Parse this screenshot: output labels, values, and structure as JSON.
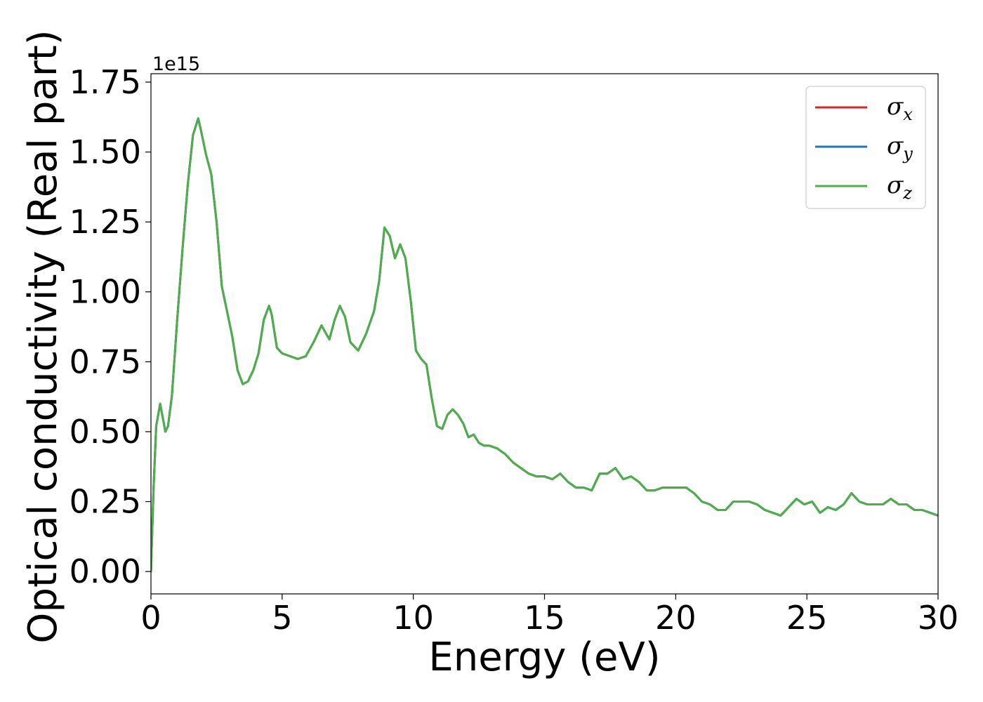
{
  "chart_data": {
    "type": "line",
    "xlabel": "Energy (eV)",
    "ylabel": "Optical conductivity (Real part)",
    "y_offset_label": "1e15",
    "y_scale_factor": 1000000000000000.0,
    "xlim": [
      0,
      30
    ],
    "ylim": [
      -0.08,
      1.78
    ],
    "x_ticks": [
      0,
      5,
      10,
      15,
      20,
      25,
      30
    ],
    "x_tick_labels": [
      "0",
      "5",
      "10",
      "15",
      "20",
      "25",
      "30"
    ],
    "y_ticks": [
      0.0,
      0.25,
      0.5,
      0.75,
      1.0,
      1.25,
      1.5,
      1.75
    ],
    "y_tick_labels": [
      "0.00",
      "0.25",
      "0.50",
      "0.75",
      "1.00",
      "1.25",
      "1.50",
      "1.75"
    ],
    "grid": false,
    "legend_position": "top-right",
    "x": [
      0,
      0.1,
      0.2,
      0.35,
      0.45,
      0.55,
      0.65,
      0.8,
      1.0,
      1.2,
      1.4,
      1.6,
      1.8,
      1.9,
      2.1,
      2.3,
      2.5,
      2.7,
      2.9,
      3.1,
      3.3,
      3.5,
      3.7,
      3.9,
      4.1,
      4.3,
      4.5,
      4.6,
      4.8,
      5.0,
      5.3,
      5.6,
      5.9,
      6.2,
      6.5,
      6.8,
      7.0,
      7.2,
      7.4,
      7.6,
      7.9,
      8.2,
      8.5,
      8.7,
      8.9,
      9.1,
      9.3,
      9.5,
      9.7,
      9.9,
      10.1,
      10.3,
      10.5,
      10.7,
      10.9,
      11.1,
      11.3,
      11.5,
      11.7,
      11.9,
      12.1,
      12.3,
      12.5,
      12.7,
      12.9,
      13.2,
      13.5,
      13.8,
      14.1,
      14.4,
      14.7,
      15.0,
      15.3,
      15.6,
      15.9,
      16.2,
      16.5,
      16.8,
      17.1,
      17.4,
      17.7,
      18.0,
      18.3,
      18.6,
      18.9,
      19.2,
      19.5,
      19.8,
      20.1,
      20.4,
      20.7,
      21.0,
      21.3,
      21.6,
      21.9,
      22.2,
      22.5,
      22.8,
      23.1,
      23.4,
      23.7,
      24.0,
      24.3,
      24.6,
      24.9,
      25.2,
      25.5,
      25.8,
      26.1,
      26.4,
      26.7,
      27.0,
      27.3,
      27.6,
      27.9,
      28.2,
      28.5,
      28.8,
      29.1,
      29.4,
      29.7,
      30.0
    ],
    "series": [
      {
        "name": "σx",
        "color": "#d62728",
        "values": [
          0.0,
          0.3,
          0.52,
          0.6,
          0.55,
          0.5,
          0.52,
          0.63,
          0.9,
          1.15,
          1.38,
          1.56,
          1.62,
          1.58,
          1.49,
          1.42,
          1.25,
          1.02,
          0.93,
          0.84,
          0.72,
          0.67,
          0.68,
          0.72,
          0.78,
          0.9,
          0.95,
          0.92,
          0.8,
          0.78,
          0.77,
          0.76,
          0.77,
          0.82,
          0.88,
          0.83,
          0.9,
          0.95,
          0.91,
          0.82,
          0.79,
          0.85,
          0.93,
          1.04,
          1.23,
          1.2,
          1.12,
          1.17,
          1.12,
          0.97,
          0.79,
          0.76,
          0.74,
          0.62,
          0.52,
          0.51,
          0.56,
          0.58,
          0.56,
          0.53,
          0.48,
          0.49,
          0.46,
          0.45,
          0.45,
          0.44,
          0.42,
          0.39,
          0.37,
          0.35,
          0.34,
          0.34,
          0.33,
          0.35,
          0.32,
          0.3,
          0.3,
          0.29,
          0.35,
          0.35,
          0.37,
          0.33,
          0.34,
          0.32,
          0.29,
          0.29,
          0.3,
          0.3,
          0.3,
          0.3,
          0.28,
          0.25,
          0.24,
          0.22,
          0.22,
          0.25,
          0.25,
          0.25,
          0.24,
          0.22,
          0.21,
          0.2,
          0.23,
          0.26,
          0.24,
          0.25,
          0.21,
          0.23,
          0.22,
          0.24,
          0.28,
          0.25,
          0.24,
          0.24,
          0.24,
          0.26,
          0.24,
          0.24,
          0.22,
          0.22,
          0.21,
          0.2
        ]
      },
      {
        "name": "σy",
        "color": "#1f77b4",
        "values": [
          0.0,
          0.3,
          0.52,
          0.6,
          0.55,
          0.5,
          0.52,
          0.63,
          0.9,
          1.15,
          1.38,
          1.56,
          1.62,
          1.58,
          1.49,
          1.42,
          1.25,
          1.02,
          0.93,
          0.84,
          0.72,
          0.67,
          0.68,
          0.72,
          0.78,
          0.9,
          0.95,
          0.92,
          0.8,
          0.78,
          0.77,
          0.76,
          0.77,
          0.82,
          0.88,
          0.83,
          0.9,
          0.95,
          0.91,
          0.82,
          0.79,
          0.85,
          0.93,
          1.04,
          1.23,
          1.2,
          1.12,
          1.17,
          1.12,
          0.97,
          0.79,
          0.76,
          0.74,
          0.62,
          0.52,
          0.51,
          0.56,
          0.58,
          0.56,
          0.53,
          0.48,
          0.49,
          0.46,
          0.45,
          0.45,
          0.44,
          0.42,
          0.39,
          0.37,
          0.35,
          0.34,
          0.34,
          0.33,
          0.35,
          0.32,
          0.3,
          0.3,
          0.29,
          0.35,
          0.35,
          0.37,
          0.33,
          0.34,
          0.32,
          0.29,
          0.29,
          0.3,
          0.3,
          0.3,
          0.3,
          0.28,
          0.25,
          0.24,
          0.22,
          0.22,
          0.25,
          0.25,
          0.25,
          0.24,
          0.22,
          0.21,
          0.2,
          0.23,
          0.26,
          0.24,
          0.25,
          0.21,
          0.23,
          0.22,
          0.24,
          0.28,
          0.25,
          0.24,
          0.24,
          0.24,
          0.26,
          0.24,
          0.24,
          0.22,
          0.22,
          0.21,
          0.2
        ]
      },
      {
        "name": "σz",
        "color": "#4daf4a",
        "values": [
          0.0,
          0.3,
          0.52,
          0.6,
          0.55,
          0.5,
          0.52,
          0.63,
          0.9,
          1.15,
          1.38,
          1.56,
          1.62,
          1.58,
          1.49,
          1.42,
          1.25,
          1.02,
          0.93,
          0.84,
          0.72,
          0.67,
          0.68,
          0.72,
          0.78,
          0.9,
          0.95,
          0.92,
          0.8,
          0.78,
          0.77,
          0.76,
          0.77,
          0.82,
          0.88,
          0.83,
          0.9,
          0.95,
          0.91,
          0.82,
          0.79,
          0.85,
          0.93,
          1.04,
          1.23,
          1.2,
          1.12,
          1.17,
          1.12,
          0.97,
          0.79,
          0.76,
          0.74,
          0.62,
          0.52,
          0.51,
          0.56,
          0.58,
          0.56,
          0.53,
          0.48,
          0.49,
          0.46,
          0.45,
          0.45,
          0.44,
          0.42,
          0.39,
          0.37,
          0.35,
          0.34,
          0.34,
          0.33,
          0.35,
          0.32,
          0.3,
          0.3,
          0.29,
          0.35,
          0.35,
          0.37,
          0.33,
          0.34,
          0.32,
          0.29,
          0.29,
          0.3,
          0.3,
          0.3,
          0.3,
          0.28,
          0.25,
          0.24,
          0.22,
          0.22,
          0.25,
          0.25,
          0.25,
          0.24,
          0.22,
          0.21,
          0.2,
          0.23,
          0.26,
          0.24,
          0.25,
          0.21,
          0.23,
          0.22,
          0.24,
          0.28,
          0.25,
          0.24,
          0.24,
          0.24,
          0.26,
          0.24,
          0.24,
          0.22,
          0.22,
          0.21,
          0.2
        ]
      }
    ],
    "legend": [
      {
        "symbol": "σ",
        "sub": "x",
        "color": "#d62728"
      },
      {
        "symbol": "σ",
        "sub": "y",
        "color": "#1f77b4"
      },
      {
        "symbol": "σ",
        "sub": "z",
        "color": "#4daf4a"
      }
    ]
  }
}
